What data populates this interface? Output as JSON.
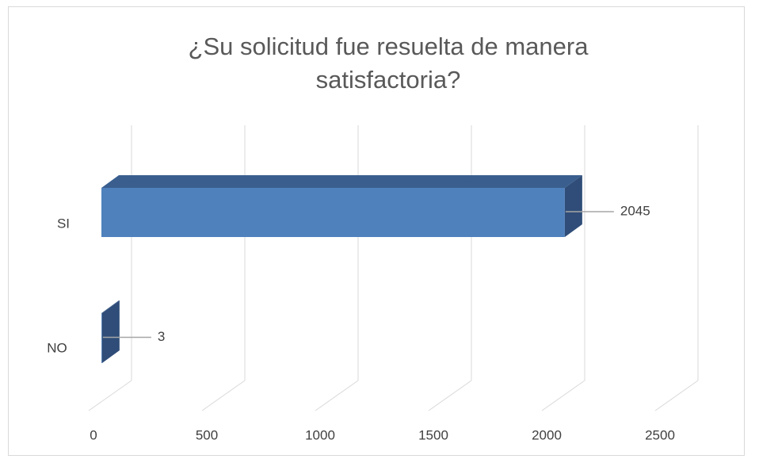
{
  "chart_data": {
    "type": "bar3d_horizontal",
    "title": "¿Su solicitud fue resuelta de manera satisfactoria?",
    "categories": [
      "SI",
      "NO"
    ],
    "values": [
      2045,
      3
    ],
    "color": "#4f81bd",
    "xlim": [
      0,
      2500
    ],
    "xticks": [
      0,
      500,
      1000,
      1500,
      2000,
      2500
    ],
    "grid": true
  }
}
